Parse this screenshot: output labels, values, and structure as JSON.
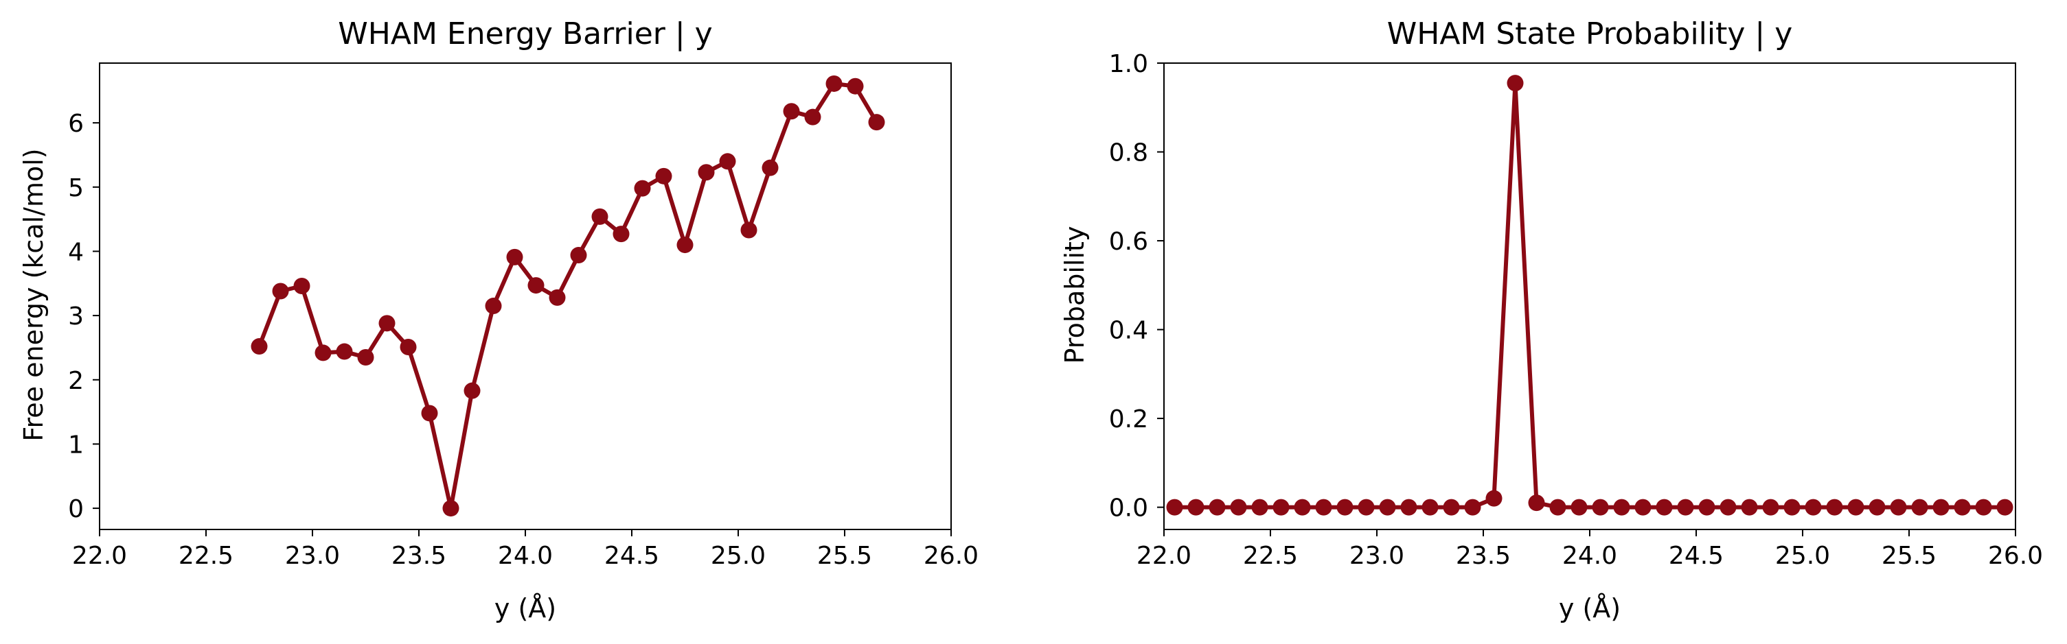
{
  "colors": {
    "series": "#8b0a14",
    "axis": "#000000",
    "background": "#ffffff"
  },
  "chart_data": [
    {
      "type": "line",
      "title": "WHAM Energy Barrier | y",
      "xlabel": "y (Å)",
      "ylabel": "Free energy (kcal/mol)",
      "xlim": [
        22.0,
        26.0
      ],
      "ylim": [
        -0.33,
        6.93
      ],
      "xticks": [
        "22.0",
        "22.5",
        "23.0",
        "23.5",
        "24.0",
        "24.5",
        "25.0",
        "25.5",
        "26.0"
      ],
      "yticks": [
        "0",
        "1",
        "2",
        "3",
        "4",
        "5",
        "6"
      ],
      "grid": false,
      "series": [
        {
          "marker": "circle",
          "x": [
            22.75,
            22.85,
            22.95,
            23.05,
            23.15,
            23.25,
            23.35,
            23.45,
            23.55,
            23.65,
            23.75,
            23.85,
            23.95,
            24.05,
            24.15,
            24.25,
            24.35,
            24.45,
            24.55,
            24.65,
            24.75,
            24.85,
            24.95,
            25.05,
            25.15,
            25.25,
            25.35,
            25.45,
            25.55,
            25.65
          ],
          "y": [
            2.52,
            3.38,
            3.46,
            2.42,
            2.44,
            2.35,
            2.88,
            2.51,
            1.48,
            0.0,
            1.83,
            3.15,
            3.91,
            3.47,
            3.28,
            3.94,
            4.54,
            4.27,
            4.98,
            5.17,
            4.1,
            5.23,
            5.4,
            4.33,
            5.3,
            6.18,
            6.09,
            6.61,
            6.57,
            6.01
          ]
        }
      ]
    },
    {
      "type": "line",
      "title": "WHAM State Probability | y",
      "xlabel": "y (Å)",
      "ylabel": "Probability",
      "xlim": [
        22.0,
        26.0
      ],
      "ylim": [
        -0.05,
        1.0
      ],
      "xticks": [
        "22.0",
        "22.5",
        "23.0",
        "23.5",
        "24.0",
        "24.5",
        "25.0",
        "25.5",
        "26.0"
      ],
      "yticks": [
        "0.0",
        "0.2",
        "0.4",
        "0.6",
        "0.8",
        "1.0"
      ],
      "grid": false,
      "series": [
        {
          "marker": "circle",
          "x": [
            22.05,
            22.15,
            22.25,
            22.35,
            22.45,
            22.55,
            22.65,
            22.75,
            22.85,
            22.95,
            23.05,
            23.15,
            23.25,
            23.35,
            23.45,
            23.55,
            23.65,
            23.75,
            23.85,
            23.95,
            24.05,
            24.15,
            24.25,
            24.35,
            24.45,
            24.55,
            24.65,
            24.75,
            24.85,
            24.95,
            25.05,
            25.15,
            25.25,
            25.35,
            25.45,
            25.55,
            25.65,
            25.75,
            25.85,
            25.95
          ],
          "y": [
            0,
            0,
            0,
            0,
            0,
            0,
            0,
            0,
            0,
            0,
            0,
            0,
            0,
            0,
            0,
            0.02,
            0.955,
            0.01,
            0,
            0,
            0,
            0,
            0,
            0,
            0,
            0,
            0,
            0,
            0,
            0,
            0,
            0,
            0,
            0,
            0,
            0,
            0,
            0,
            0,
            0
          ]
        }
      ]
    }
  ]
}
